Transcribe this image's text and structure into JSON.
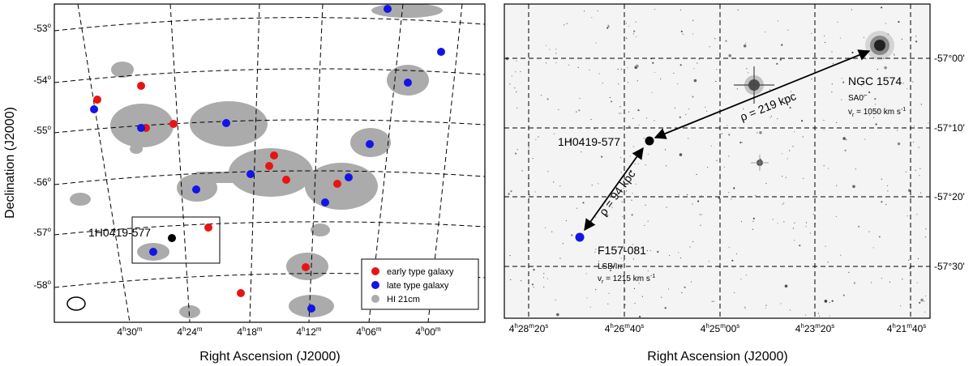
{
  "left_panel": {
    "ylabel": "Declination (J2000)",
    "xlabel": "Right Ascension (J2000)",
    "dec_ticks": [
      {
        "deg": "-53",
        "sup": "o"
      },
      {
        "deg": "-54",
        "sup": "o"
      },
      {
        "deg": "-55",
        "sup": "o"
      },
      {
        "deg": "-56",
        "sup": "o"
      },
      {
        "deg": "-57",
        "sup": "o"
      },
      {
        "deg": "-58",
        "sup": "o"
      }
    ],
    "ra_ticks": [
      {
        "h": "4",
        "m": "30"
      },
      {
        "h": "4",
        "m": "24"
      },
      {
        "h": "4",
        "m": "18"
      },
      {
        "h": "4",
        "m": "12"
      },
      {
        "h": "4",
        "m": "06"
      },
      {
        "h": "4",
        "m": "00"
      }
    ],
    "source_label": "1H0419-577",
    "legend": {
      "early": "early type galaxy",
      "late": "late type galaxy",
      "hi": "HI 21cm"
    },
    "colors": {
      "early": "#e81414",
      "late": "#1414e6",
      "hi": "#ababab"
    }
  },
  "right_panel": {
    "xlabel": "Right Ascension (J2000)",
    "dec_ticks": [
      "-57°00'",
      "-57°10'",
      "-57°20'",
      "-57°30'"
    ],
    "ra_ticks": [
      {
        "h": "4",
        "m": "28",
        "s": "20"
      },
      {
        "h": "4",
        "m": "26",
        "s": "40"
      },
      {
        "h": "4",
        "m": "25",
        "s": "00"
      },
      {
        "h": "4",
        "m": "23",
        "s": "20"
      },
      {
        "h": "4",
        "m": "21",
        "s": "40"
      }
    ],
    "ngc_name": "NGC 1574",
    "ngc_type": "SA0",
    "ngc_type_sup": "−",
    "ngc_vel": "v",
    "ngc_vel_sub": "r",
    "ngc_vel_val": " = 1050 km s",
    "ngc_vel_unit_sup": "-1",
    "source_name": "1H0419-577",
    "f_name": "F157-081",
    "f_type": "LSB/Irr",
    "f_vel": "v",
    "f_vel_sub": "r",
    "f_vel_val": " = 1215 km s",
    "f_vel_unit_sup": "-1",
    "rho1": "ρ = 219 kpc",
    "rho2": "ρ = 94 kpc"
  }
}
